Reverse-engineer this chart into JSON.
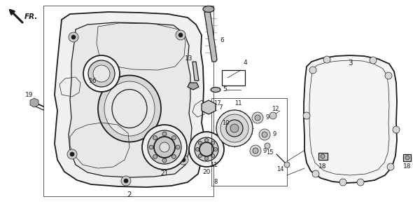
{
  "bg_color": "#ffffff",
  "line_color": "#1a1a1a",
  "gray_color": "#888888",
  "light_gray": "#cccccc",
  "lw_thin": 0.5,
  "lw_med": 0.9,
  "lw_thick": 1.3,
  "lw_xthick": 2.0,
  "fig_w": 5.9,
  "fig_h": 3.01,
  "dpi": 100
}
